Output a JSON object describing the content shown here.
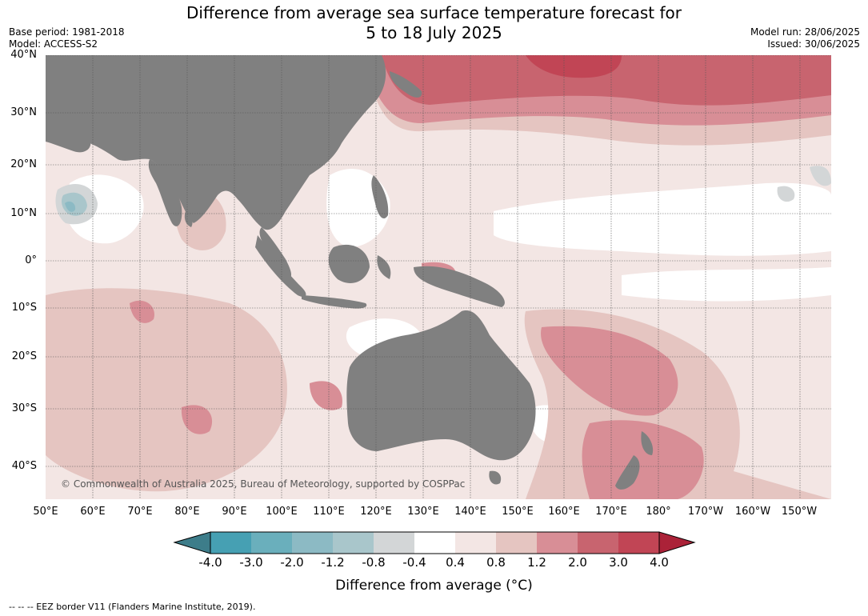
{
  "title": {
    "line1": "Difference from average sea surface temperature forecast for",
    "line2": "5 to 18 July 2025"
  },
  "meta": {
    "base_period": "Base period: 1981-2018",
    "model": "Model: ACCESS-S2",
    "model_run": "Model run: 28/06/2025",
    "issued": "Issued: 30/06/2025"
  },
  "lat_labels": [
    "40°N",
    "30°N",
    "20°N",
    "10°N",
    "0°",
    "10°S",
    "20°S",
    "30°S",
    "40°S"
  ],
  "lon_labels": [
    "50°E",
    "60°E",
    "70°E",
    "80°E",
    "90°E",
    "100°E",
    "110°E",
    "120°E",
    "130°E",
    "140°E",
    "150°E",
    "160°E",
    "170°E",
    "180°",
    "170°W",
    "160°W",
    "150°W"
  ],
  "copyright": "© Commonwealth of Australia 2025, Bureau of Meteorology, supported by COSPPac",
  "colorbar": {
    "ticks": [
      "-4.0",
      "-3.0",
      "-2.0",
      "-1.2",
      "-0.8",
      "-0.4",
      "0.4",
      "0.8",
      "1.2",
      "2.0",
      "3.0",
      "4.0"
    ],
    "colors": {
      "under": "#3d7d8a",
      "bins": [
        "#46a0b3",
        "#6aafbc",
        "#8cbac4",
        "#a9c6cb",
        "#d3d6d7",
        "#ffffff",
        "#f3e6e4",
        "#e5c5c1",
        "#d88e96",
        "#c8646f",
        "#c14555"
      ],
      "over": "#ab2238"
    },
    "label": "Difference from average (°C)"
  },
  "land_color": "#808080",
  "footnote": "--  --  -- EEZ border V11 (Flanders Marine Institute, 2019)."
}
